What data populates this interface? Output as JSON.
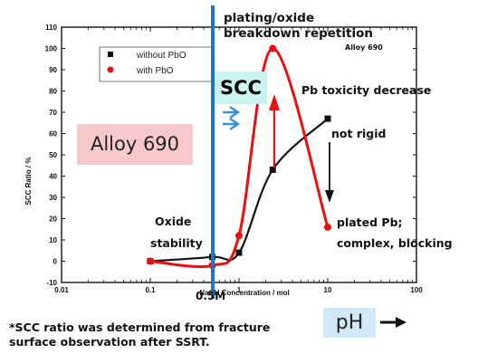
{
  "chart_data": {
    "type": "line",
    "xscale": "log",
    "xlim": [
      0.01,
      100
    ],
    "ylim": [
      -10,
      110
    ],
    "xticks": [
      0.01,
      0.1,
      1,
      10,
      100
    ],
    "xtick_labels": [
      "0.01",
      "0.1",
      "1",
      "10",
      "100"
    ],
    "yticks": [
      -10,
      0,
      10,
      20,
      30,
      40,
      50,
      60,
      70,
      80,
      90,
      100,
      110
    ],
    "xlabel": "NaOH Concentration / mol",
    "ylabel": "SCC Ratio / %",
    "legend_position": "top-left",
    "series": [
      {
        "name": "without PbO",
        "marker": "square",
        "color": "#111111",
        "x": [
          0.1,
          0.5,
          1.0,
          2.4,
          10.0
        ],
        "y": [
          0,
          2,
          4,
          43,
          67
        ]
      },
      {
        "name": "with PbO",
        "marker": "circle",
        "color": "#e81010",
        "x": [
          0.1,
          0.5,
          1.0,
          2.4,
          10.0
        ],
        "y": [
          0,
          -2,
          12,
          100,
          16
        ]
      }
    ],
    "annotations": {
      "plating": "plating/oxide",
      "breakdown": "breakdown repetition",
      "alloy_small": "Alloy 690",
      "pb_tox": "Pb toxicity decrease",
      "not_rigid": "not rigid",
      "oxide": "Oxide",
      "stability": "stability",
      "plated1": "plated Pb;",
      "plated2": "complex, blocking",
      "half_molar": "0.5M"
    }
  },
  "labels": {
    "alloy_box": "Alloy 690",
    "scc_box": "SCC",
    "ph_box": "pH",
    "footnote_1": "*SCC ratio was determined from fracture",
    "footnote_2": "surface observation after SSRT."
  },
  "colors": {
    "blue_line": "#1f74c4",
    "arrow_blue": "#3f8fd8",
    "red": "#e81010",
    "black": "#111111",
    "alloy_box_bg": "#f7c9cb",
    "scc_box_bg": "#c9f3ec",
    "ph_box_bg": "#cfeaf6"
  }
}
